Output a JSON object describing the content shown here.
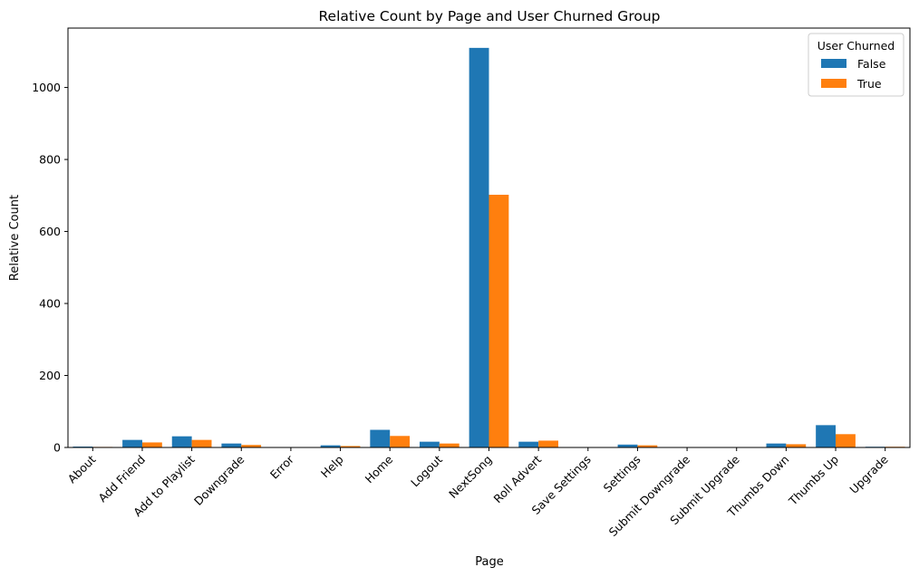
{
  "chart_data": {
    "type": "bar",
    "title": "Relative Count by Page and User Churned Group",
    "xlabel": "Page",
    "ylabel": "Relative Count",
    "ylim": [
      0,
      1165
    ],
    "yticks": [
      0,
      200,
      400,
      600,
      800,
      1000
    ],
    "grid": false,
    "legend_title": "User Churned",
    "legend_position": "top-right",
    "categories": [
      "About",
      "Add Friend",
      "Add to Playlist",
      "Downgrade",
      "Error",
      "Help",
      "Home",
      "Logout",
      "NextSong",
      "Roll Advert",
      "Save Settings",
      "Settings",
      "Submit Downgrade",
      "Submit Upgrade",
      "Thumbs Down",
      "Thumbs Up",
      "Upgrade"
    ],
    "series": [
      {
        "name": "False",
        "color": "#1f77b4",
        "values": [
          2.5,
          21,
          31,
          11,
          1,
          6,
          49,
          16,
          1110,
          16,
          1,
          8,
          0.5,
          0.5,
          11,
          62,
          2
        ]
      },
      {
        "name": "True",
        "color": "#ff7f0e",
        "values": [
          1.5,
          14,
          21,
          7,
          0.5,
          4,
          32,
          11,
          702,
          19,
          0.5,
          6,
          0.3,
          0.3,
          9,
          37,
          2
        ]
      }
    ]
  }
}
